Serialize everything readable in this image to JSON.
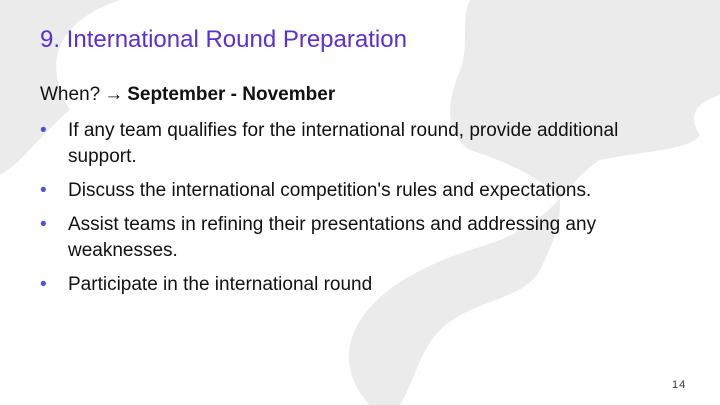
{
  "slide": {
    "title": "9. International Round Preparation",
    "when_label": "When?",
    "when_arrow": "→",
    "when_value": "September - November",
    "bullets": [
      "If any team qualifies for the international round, provide additional support.",
      "Discuss the international competition's rules and expectations.",
      "Assist teams in refining their presentations and addressing any weaknesses.",
      "Participate in the international round"
    ],
    "bullet_marker": "•",
    "page_number": "14"
  },
  "colors": {
    "title": "#5b2fd6",
    "bullet_marker": "#4a52d8",
    "background_blob": "#ebebeb"
  }
}
